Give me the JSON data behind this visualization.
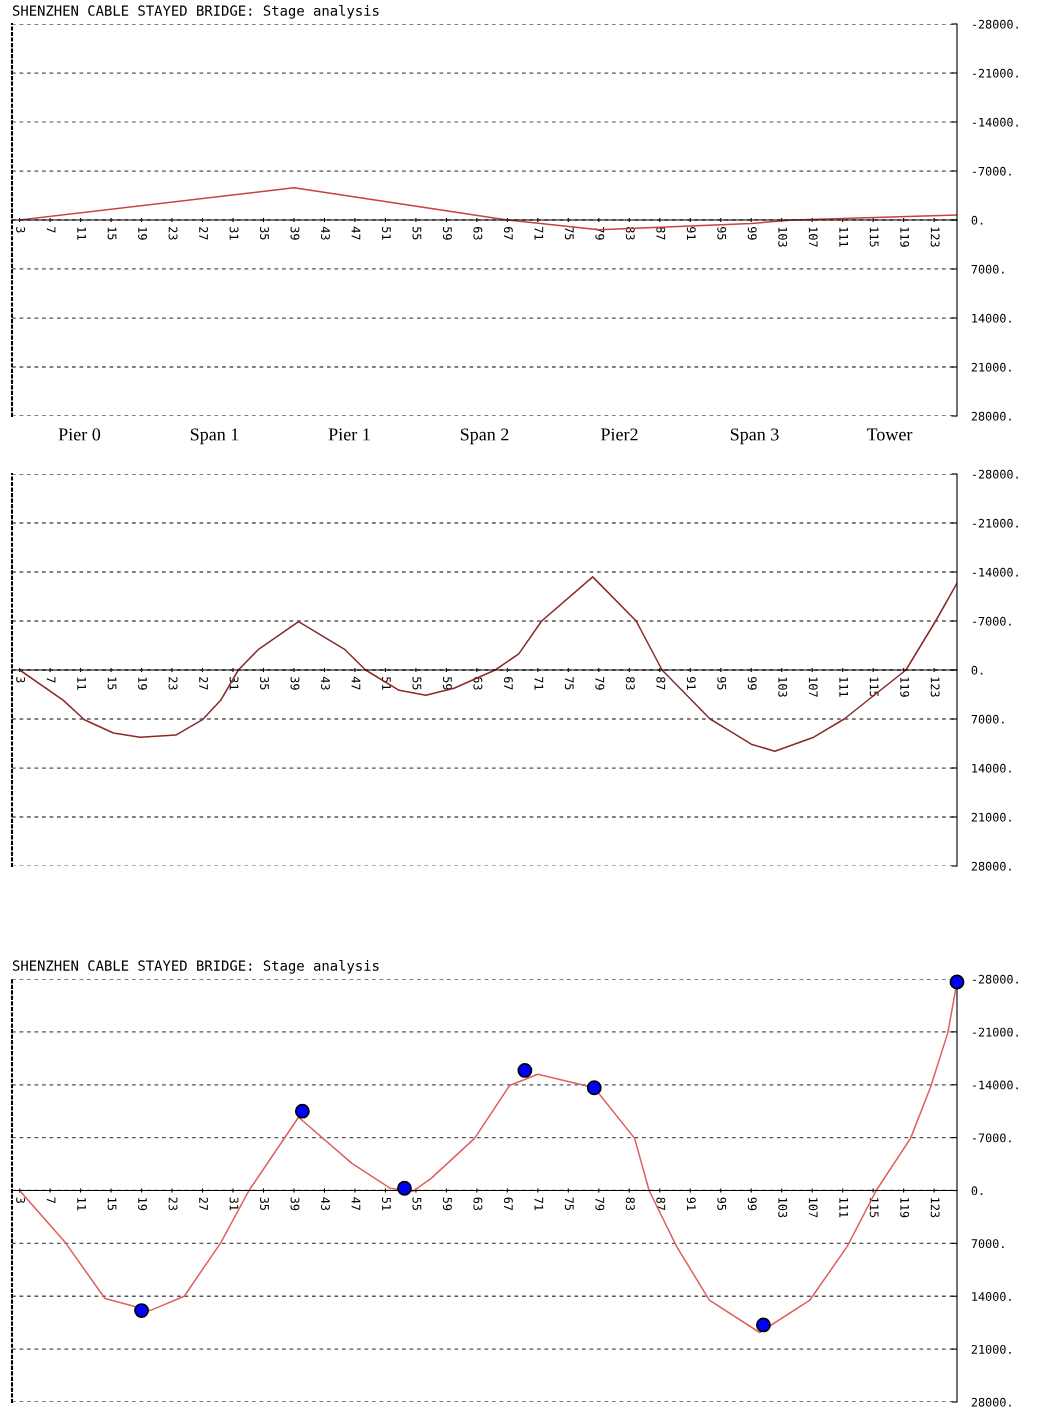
{
  "chart_data": [
    {
      "type": "line",
      "title": "SHENZHEN CABLE STAYED BRIDGE: Stage analysis",
      "grid": "y",
      "xlim": [
        2,
        126
      ],
      "ylim": [
        28000,
        -28000
      ],
      "xticks": [
        3,
        7,
        11,
        15,
        19,
        23,
        27,
        31,
        35,
        39,
        43,
        47,
        51,
        55,
        59,
        63,
        67,
        71,
        75,
        79,
        83,
        87,
        91,
        95,
        99,
        103,
        107,
        111,
        115,
        119,
        123
      ],
      "yticks": [
        {
          "value": -28000,
          "label": "-28000."
        },
        {
          "value": -21000,
          "label": "-21000."
        },
        {
          "value": -14000,
          "label": "-14000."
        },
        {
          "value": -7000,
          "label": "-7000."
        },
        {
          "value": 0,
          "label": "0."
        },
        {
          "value": 7000,
          "label": "7000."
        },
        {
          "value": 14000,
          "label": "14000."
        },
        {
          "value": 21000,
          "label": "21000."
        },
        {
          "value": 28000,
          "label": "28000."
        }
      ],
      "annotations": [
        "Pier 0",
        "Span 1",
        "Pier 1",
        "Span 2",
        "Pier2",
        "Span 3",
        "Tower"
      ],
      "series": [
        {
          "color": "#c84040",
          "x": [
            3,
            39,
            67,
            79,
            99,
            104.5,
            126
          ],
          "values": [
            0,
            -4600,
            0,
            1400,
            500,
            0,
            -700
          ]
        }
      ]
    },
    {
      "type": "line",
      "grid": "y",
      "xlim": [
        2,
        126
      ],
      "ylim": [
        28000,
        -28000
      ],
      "xticks": [
        3,
        7,
        11,
        15,
        19,
        23,
        27,
        31,
        35,
        39,
        43,
        47,
        51,
        55,
        59,
        63,
        67,
        71,
        75,
        79,
        83,
        87,
        91,
        95,
        99,
        103,
        107,
        111,
        115,
        119,
        123
      ],
      "yticks": [
        {
          "value": -28000,
          "label": "-28000."
        },
        {
          "value": -21000,
          "label": "-21000."
        },
        {
          "value": -14000,
          "label": "-14000."
        },
        {
          "value": -7000,
          "label": "-7000."
        },
        {
          "value": 0,
          "label": "0."
        },
        {
          "value": 7000,
          "label": "7000."
        },
        {
          "value": 14000,
          "label": "14000."
        },
        {
          "value": 21000,
          "label": "21000."
        },
        {
          "value": 28000,
          "label": "28000."
        }
      ],
      "series": [
        {
          "color": "#8b2a2a",
          "x": [
            3,
            8.7,
            11.5,
            15.3,
            18.8,
            23.5,
            27,
            29.4,
            31.7,
            34.3,
            39.6,
            45.7,
            48.4,
            52.8,
            56.3,
            60.0,
            65.4,
            68.5,
            71.5,
            78.2,
            83.9,
            87.3,
            93.6,
            96.0,
            99,
            102.1,
            107.2,
            111.2,
            119.3,
            123.2,
            126
          ],
          "values": [
            0,
            4300,
            7100,
            9000,
            9600,
            9300,
            7100,
            4300,
            0,
            -2900,
            -6900,
            -2900,
            0,
            2900,
            3600,
            2600,
            0,
            -2300,
            -7000,
            -13300,
            -7000,
            0,
            7000,
            8600,
            10600,
            11600,
            9600,
            7000,
            0,
            -7000,
            -12400
          ]
        }
      ]
    },
    {
      "type": "line",
      "title": "SHENZHEN CABLE STAYED BRIDGE: Stage analysis",
      "grid": "y",
      "xlim": [
        2,
        126
      ],
      "ylim": [
        28000,
        -28000
      ],
      "xticks": [
        3,
        7,
        11,
        15,
        19,
        23,
        27,
        31,
        35,
        39,
        43,
        47,
        51,
        55,
        59,
        63,
        67,
        71,
        75,
        79,
        83,
        87,
        91,
        95,
        99,
        103,
        107,
        111,
        115,
        119,
        123
      ],
      "yticks": [
        {
          "value": -28000,
          "label": "-28000."
        },
        {
          "value": -21000,
          "label": "-21000."
        },
        {
          "value": -14000,
          "label": "-14000."
        },
        {
          "value": -7000,
          "label": "-7000."
        },
        {
          "value": 0,
          "label": "0."
        },
        {
          "value": 7000,
          "label": "7000."
        },
        {
          "value": 14000,
          "label": "14000."
        },
        {
          "value": 21000,
          "label": "21000."
        },
        {
          "value": 28000,
          "label": "28000."
        }
      ],
      "series": [
        {
          "color": "#e06060",
          "x": [
            3,
            9.0,
            14.2,
            20.1,
            24.6,
            29.4,
            33.1,
            39.6,
            46.6,
            51.6,
            54.6,
            57.0,
            62.7,
            67.3,
            71,
            78.4,
            83.7,
            85.6,
            89.2,
            93.5,
            100.1,
            106.7,
            111.6,
            115.4,
            119.9,
            122.5,
            124.8,
            126
          ],
          "values": [
            0,
            6900,
            14300,
            15900,
            14000,
            6900,
            0,
            -9700,
            -3600,
            -300,
            100,
            -1600,
            -6900,
            -13900,
            -15400,
            -13600,
            -6900,
            0,
            7400,
            14500,
            18800,
            14500,
            7400,
            0,
            -6900,
            -13600,
            -20900,
            -27600
          ]
        },
        {
          "type": "scatter",
          "color": "#0000ff",
          "marker": "circle",
          "x": [
            19,
            40.1,
            53.5,
            69.3,
            78.4,
            100.6,
            126
          ],
          "values": [
            15900,
            -10500,
            -300,
            -15900,
            -13600,
            17800,
            -27600
          ]
        }
      ]
    }
  ]
}
